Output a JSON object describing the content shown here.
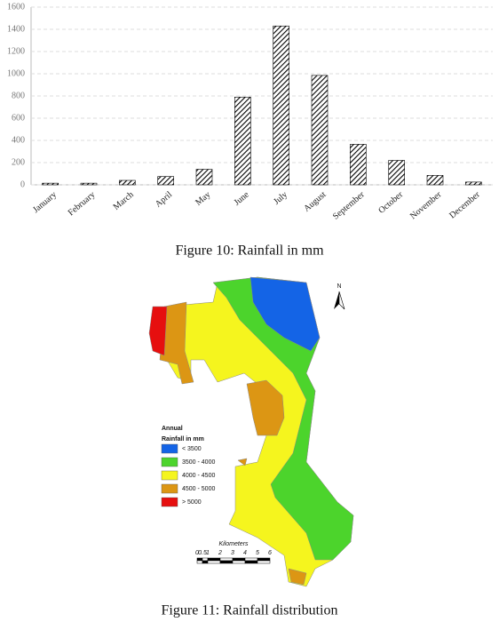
{
  "chart_data": {
    "type": "bar",
    "categories": [
      "January",
      "February",
      "March",
      "April",
      "May",
      "June",
      "July",
      "August",
      "September",
      "October",
      "November",
      "December"
    ],
    "values": [
      15,
      15,
      40,
      75,
      140,
      790,
      1430,
      985,
      365,
      220,
      85,
      25
    ],
    "color": "#000000",
    "ylim": [
      0,
      1600
    ],
    "yticks": [
      0,
      200,
      400,
      600,
      800,
      1000,
      1200,
      1400,
      1600
    ],
    "grid": true
  },
  "figure_10_caption": "Figure 10: Rainfall in mm",
  "map": {
    "north": "N",
    "legend": {
      "title": "Annual",
      "subtitle": "Rainfall in mm",
      "items": [
        {
          "label": "< 3500",
          "color": "#1464e6"
        },
        {
          "label": "3500 - 4000",
          "color": "#4cd42c"
        },
        {
          "label": "4000 - 4500",
          "color": "#f5f51e"
        },
        {
          "label": "4500 - 5000",
          "color": "#dc9614"
        },
        {
          "label": "> 5000",
          "color": "#e60f0f"
        }
      ]
    },
    "scale": {
      "title": "Kilometers",
      "labels": [
        "0",
        "0.5",
        "1",
        "2",
        "3",
        "4",
        "5",
        "6"
      ]
    }
  },
  "figure_11_caption": "Figure 11: Rainfall distribution"
}
